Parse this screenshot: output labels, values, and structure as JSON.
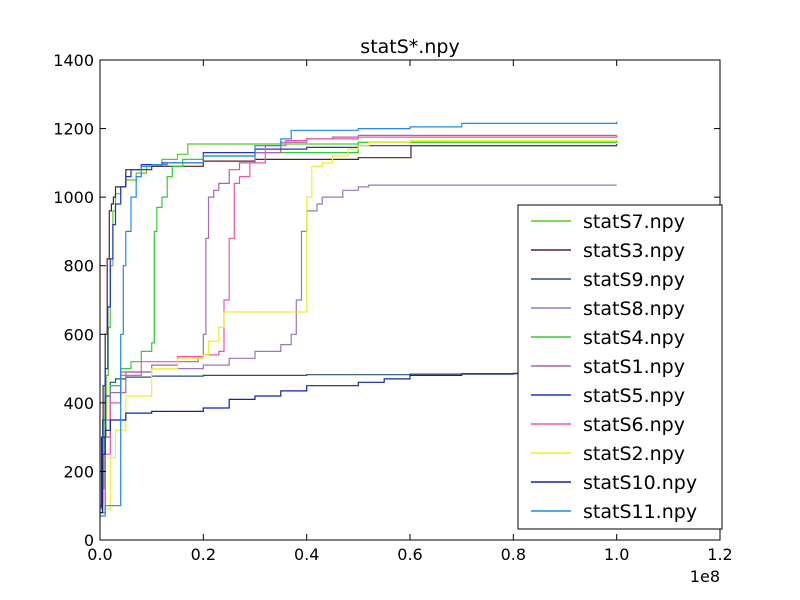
{
  "chart_data": {
    "type": "line",
    "title": "statS*.npy",
    "xlabel": "",
    "ylabel": "",
    "x_offset_label": "1e8",
    "xlim": [
      0,
      1.2
    ],
    "ylim": [
      0,
      1400
    ],
    "x_ticks": [
      0,
      0.2,
      0.4,
      0.6,
      0.8,
      1.0,
      1.2
    ],
    "x_tick_labels": [
      "0.0",
      "0.2",
      "0.4",
      "0.6",
      "0.8",
      "1.0",
      "1.2"
    ],
    "y_ticks": [
      0,
      200,
      400,
      600,
      800,
      1000,
      1200,
      1400
    ],
    "y_tick_labels": [
      "0",
      "200",
      "400",
      "600",
      "800",
      "1000",
      "1200",
      "1400"
    ],
    "grid": false,
    "legend_position": "lower-right",
    "series": [
      {
        "name": "statS7.npy",
        "color": "#55cc22",
        "points": [
          [
            0,
            80
          ],
          [
            0.004,
            150
          ],
          [
            0.008,
            300
          ],
          [
            0.012,
            480
          ],
          [
            0.016,
            620
          ],
          [
            0.02,
            800
          ],
          [
            0.025,
            960
          ],
          [
            0.03,
            1010
          ],
          [
            0.04,
            1030
          ],
          [
            0.05,
            1050
          ],
          [
            0.07,
            1070
          ],
          [
            0.09,
            1090
          ],
          [
            0.12,
            1110
          ],
          [
            0.15,
            1125
          ],
          [
            0.17,
            1155
          ],
          [
            0.3,
            1155
          ],
          [
            0.5,
            1160
          ],
          [
            1.0,
            1165
          ]
        ]
      },
      {
        "name": "statS3.npy",
        "color": "#552222",
        "points": [
          [
            0,
            90
          ],
          [
            0.003,
            300
          ],
          [
            0.006,
            450
          ],
          [
            0.01,
            600
          ],
          [
            0.014,
            820
          ],
          [
            0.018,
            960
          ],
          [
            0.022,
            980
          ],
          [
            0.026,
            1000
          ],
          [
            0.03,
            1030
          ],
          [
            0.05,
            1080
          ],
          [
            0.1,
            1090
          ],
          [
            0.2,
            1105
          ],
          [
            0.3,
            1110
          ],
          [
            0.5,
            1115
          ],
          [
            0.6,
            1115
          ],
          [
            0.602,
            1150
          ],
          [
            1.0,
            1150
          ]
        ]
      },
      {
        "name": "statS9.npy",
        "color": "#225566",
        "points": [
          [
            0,
            100
          ],
          [
            0.005,
            350
          ],
          [
            0.01,
            420
          ],
          [
            0.02,
            460
          ],
          [
            0.03,
            470
          ],
          [
            0.05,
            475
          ],
          [
            0.1,
            478
          ],
          [
            0.2,
            480
          ],
          [
            0.4,
            482
          ],
          [
            0.6,
            484
          ],
          [
            0.8,
            486
          ],
          [
            1.0,
            487
          ]
        ]
      },
      {
        "name": "statS8.npy",
        "color": "#9977bb",
        "points": [
          [
            0,
            90
          ],
          [
            0.01,
            350
          ],
          [
            0.02,
            450
          ],
          [
            0.04,
            490
          ],
          [
            0.1,
            500
          ],
          [
            0.2,
            510
          ],
          [
            0.25,
            530
          ],
          [
            0.3,
            550
          ],
          [
            0.35,
            570
          ],
          [
            0.37,
            600
          ],
          [
            0.38,
            700
          ],
          [
            0.39,
            900
          ],
          [
            0.4,
            960
          ],
          [
            0.42,
            980
          ],
          [
            0.43,
            1000
          ],
          [
            0.47,
            1020
          ],
          [
            0.5,
            1030
          ],
          [
            0.52,
            1035
          ],
          [
            0.6,
            1035
          ],
          [
            0.8,
            1035
          ],
          [
            1.0,
            1035
          ]
        ]
      },
      {
        "name": "statS4.npy",
        "color": "#33cc33",
        "points": [
          [
            0,
            80
          ],
          [
            0.01,
            300
          ],
          [
            0.02,
            450
          ],
          [
            0.04,
            500
          ],
          [
            0.06,
            520
          ],
          [
            0.08,
            550
          ],
          [
            0.1,
            575
          ],
          [
            0.105,
            900
          ],
          [
            0.11,
            970
          ],
          [
            0.12,
            1000
          ],
          [
            0.13,
            1060
          ],
          [
            0.14,
            1090
          ],
          [
            0.16,
            1110
          ],
          [
            0.2,
            1120
          ],
          [
            0.3,
            1130
          ],
          [
            0.5,
            1160
          ],
          [
            1.0,
            1165
          ]
        ]
      },
      {
        "name": "statS1.npy",
        "color": "#aa66aa",
        "points": [
          [
            0,
            90
          ],
          [
            0.01,
            300
          ],
          [
            0.02,
            430
          ],
          [
            0.05,
            490
          ],
          [
            0.1,
            510
          ],
          [
            0.15,
            520
          ],
          [
            0.19,
            530
          ],
          [
            0.2,
            600
          ],
          [
            0.205,
            880
          ],
          [
            0.21,
            1000
          ],
          [
            0.22,
            1020
          ],
          [
            0.23,
            1040
          ],
          [
            0.25,
            1080
          ],
          [
            0.27,
            1100
          ],
          [
            0.3,
            1130
          ],
          [
            0.35,
            1160
          ],
          [
            0.4,
            1170
          ],
          [
            0.45,
            1175
          ],
          [
            0.5,
            1180
          ],
          [
            1.0,
            1180
          ]
        ]
      },
      {
        "name": "statS5.npy",
        "color": "#2233cc",
        "points": [
          [
            0,
            100
          ],
          [
            0.005,
            300
          ],
          [
            0.01,
            500
          ],
          [
            0.015,
            680
          ],
          [
            0.02,
            820
          ],
          [
            0.025,
            920
          ],
          [
            0.03,
            980
          ],
          [
            0.04,
            1030
          ],
          [
            0.05,
            1060
          ],
          [
            0.06,
            1080
          ],
          [
            0.08,
            1095
          ],
          [
            0.12,
            1100
          ],
          [
            0.2,
            1130
          ],
          [
            0.3,
            1140
          ],
          [
            0.4,
            1145
          ],
          [
            0.5,
            1150
          ],
          [
            1.0,
            1155
          ]
        ]
      },
      {
        "name": "statS6.npy",
        "color": "#ee55aa",
        "points": [
          [
            0,
            80
          ],
          [
            0.01,
            250
          ],
          [
            0.02,
            400
          ],
          [
            0.04,
            480
          ],
          [
            0.08,
            520
          ],
          [
            0.15,
            535
          ],
          [
            0.2,
            540
          ],
          [
            0.23,
            550
          ],
          [
            0.24,
            700
          ],
          [
            0.25,
            880
          ],
          [
            0.26,
            1040
          ],
          [
            0.27,
            1060
          ],
          [
            0.29,
            1100
          ],
          [
            0.32,
            1150
          ],
          [
            0.36,
            1165
          ],
          [
            0.4,
            1170
          ],
          [
            0.5,
            1175
          ],
          [
            1.0,
            1180
          ]
        ]
      },
      {
        "name": "statS2.npy",
        "color": "#eeee33",
        "points": [
          [
            0,
            90
          ],
          [
            0.02,
            240
          ],
          [
            0.03,
            320
          ],
          [
            0.05,
            420
          ],
          [
            0.1,
            500
          ],
          [
            0.15,
            530
          ],
          [
            0.2,
            540
          ],
          [
            0.21,
            580
          ],
          [
            0.23,
            620
          ],
          [
            0.24,
            665
          ],
          [
            0.3,
            665
          ],
          [
            0.39,
            665
          ],
          [
            0.4,
            1000
          ],
          [
            0.41,
            1090
          ],
          [
            0.43,
            1100
          ],
          [
            0.45,
            1120
          ],
          [
            0.48,
            1140
          ],
          [
            0.5,
            1150
          ],
          [
            0.52,
            1160
          ],
          [
            0.6,
            1165
          ],
          [
            1.0,
            1170
          ]
        ]
      },
      {
        "name": "statS10.npy",
        "color": "#1122aa",
        "points": [
          [
            0,
            80
          ],
          [
            0.005,
            250
          ],
          [
            0.01,
            320
          ],
          [
            0.02,
            350
          ],
          [
            0.05,
            370
          ],
          [
            0.1,
            375
          ],
          [
            0.2,
            385
          ],
          [
            0.25,
            410
          ],
          [
            0.3,
            420
          ],
          [
            0.35,
            435
          ],
          [
            0.4,
            450
          ],
          [
            0.5,
            460
          ],
          [
            0.55,
            470
          ],
          [
            0.6,
            480
          ],
          [
            0.7,
            485
          ],
          [
            1.0,
            485
          ]
        ]
      },
      {
        "name": "statS11.npy",
        "color": "#2288ee",
        "points": [
          [
            0,
            70
          ],
          [
            0.01,
            100
          ],
          [
            0.035,
            100
          ],
          [
            0.04,
            600
          ],
          [
            0.045,
            800
          ],
          [
            0.05,
            900
          ],
          [
            0.06,
            1000
          ],
          [
            0.07,
            1060
          ],
          [
            0.08,
            1090
          ],
          [
            0.1,
            1095
          ],
          [
            0.13,
            1100
          ],
          [
            0.2,
            1120
          ],
          [
            0.3,
            1150
          ],
          [
            0.35,
            1170
          ],
          [
            0.37,
            1195
          ],
          [
            0.5,
            1200
          ],
          [
            0.6,
            1205
          ],
          [
            0.7,
            1215
          ],
          [
            1.0,
            1220
          ]
        ]
      }
    ]
  }
}
